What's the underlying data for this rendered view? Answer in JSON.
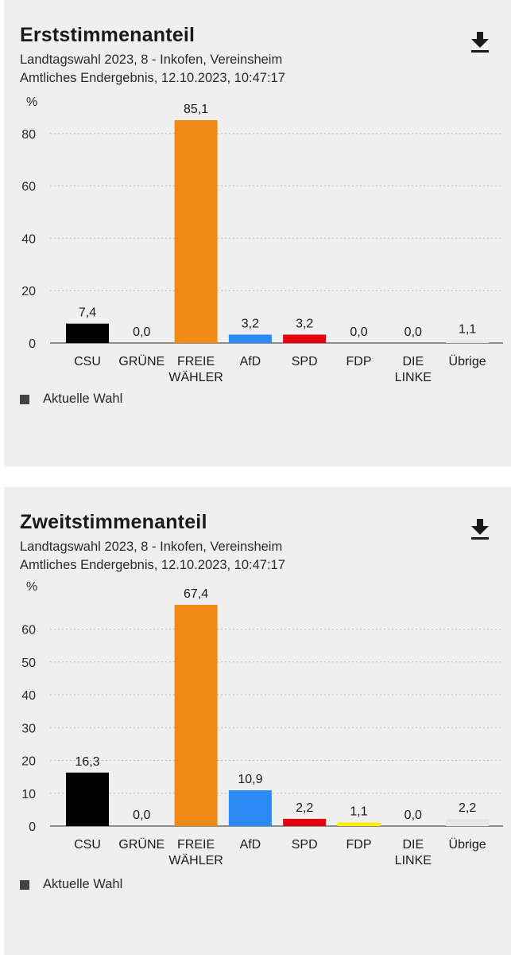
{
  "charts": [
    {
      "title": "Erststimmenanteil",
      "subtitle1": "Landtagswahl 2023, 8 - Inkofen, Vereinsheim",
      "subtitle2": "Amtliches Endergebnis, 12.10.2023, 10:47:17",
      "legend_label": "Aktuelle Wahl",
      "download_icon": "download-icon"
    },
    {
      "title": "Zweitstimmenanteil",
      "subtitle1": "Landtagswahl 2023, 8 - Inkofen, Vereinsheim",
      "subtitle2": "Amtliches Endergebnis, 12.10.2023, 10:47:17",
      "legend_label": "Aktuelle Wahl",
      "download_icon": "download-icon"
    }
  ],
  "chart_data": [
    {
      "type": "bar",
      "title": "Erststimmenanteil",
      "ylabel": "%",
      "ylim": [
        0,
        85.1
      ],
      "yticks": [
        0,
        20,
        40,
        60,
        80
      ],
      "grid": true,
      "legend": "bottom-left",
      "categories": [
        [
          "CSU"
        ],
        [
          "GRÜNE"
        ],
        [
          "FREIE",
          "WÄHLER"
        ],
        [
          "AfD"
        ],
        [
          "SPD"
        ],
        [
          "FDP"
        ],
        [
          "DIE",
          "LINKE"
        ],
        [
          "Übrige"
        ]
      ],
      "values": [
        7.4,
        0.0,
        85.1,
        3.2,
        3.2,
        0.0,
        0.0,
        1.1
      ],
      "value_labels": [
        "7,4",
        "0,0",
        "85,1",
        "3,2",
        "3,2",
        "0,0",
        "0,0",
        "1,1"
      ],
      "colors": [
        "#000000",
        "#46962b",
        "#f08a14",
        "#2b8af5",
        "#e3000f",
        "#ffed00",
        "#be3075",
        "#e6e6e6"
      ],
      "series": [
        {
          "name": "Aktuelle Wahl",
          "values": [
            7.4,
            0.0,
            85.1,
            3.2,
            3.2,
            0.0,
            0.0,
            1.1
          ]
        }
      ]
    },
    {
      "type": "bar",
      "title": "Zweitstimmenanteil",
      "ylabel": "%",
      "ylim": [
        0,
        67.4
      ],
      "yticks": [
        0,
        10,
        20,
        30,
        40,
        50,
        60
      ],
      "grid": true,
      "legend": "bottom-left",
      "categories": [
        [
          "CSU"
        ],
        [
          "GRÜNE"
        ],
        [
          "FREIE",
          "WÄHLER"
        ],
        [
          "AfD"
        ],
        [
          "SPD"
        ],
        [
          "FDP"
        ],
        [
          "DIE",
          "LINKE"
        ],
        [
          "Übrige"
        ]
      ],
      "values": [
        16.3,
        0.0,
        67.4,
        10.9,
        2.2,
        1.1,
        0.0,
        2.2
      ],
      "value_labels": [
        "16,3",
        "0,0",
        "67,4",
        "10,9",
        "2,2",
        "1,1",
        "0,0",
        "2,2"
      ],
      "colors": [
        "#000000",
        "#46962b",
        "#f08a14",
        "#2b8af5",
        "#e3000f",
        "#ffed00",
        "#be3075",
        "#e6e6e6"
      ],
      "series": [
        {
          "name": "Aktuelle Wahl",
          "values": [
            16.3,
            0.0,
            67.4,
            10.9,
            2.2,
            1.1,
            0.0,
            2.2
          ]
        }
      ]
    }
  ]
}
